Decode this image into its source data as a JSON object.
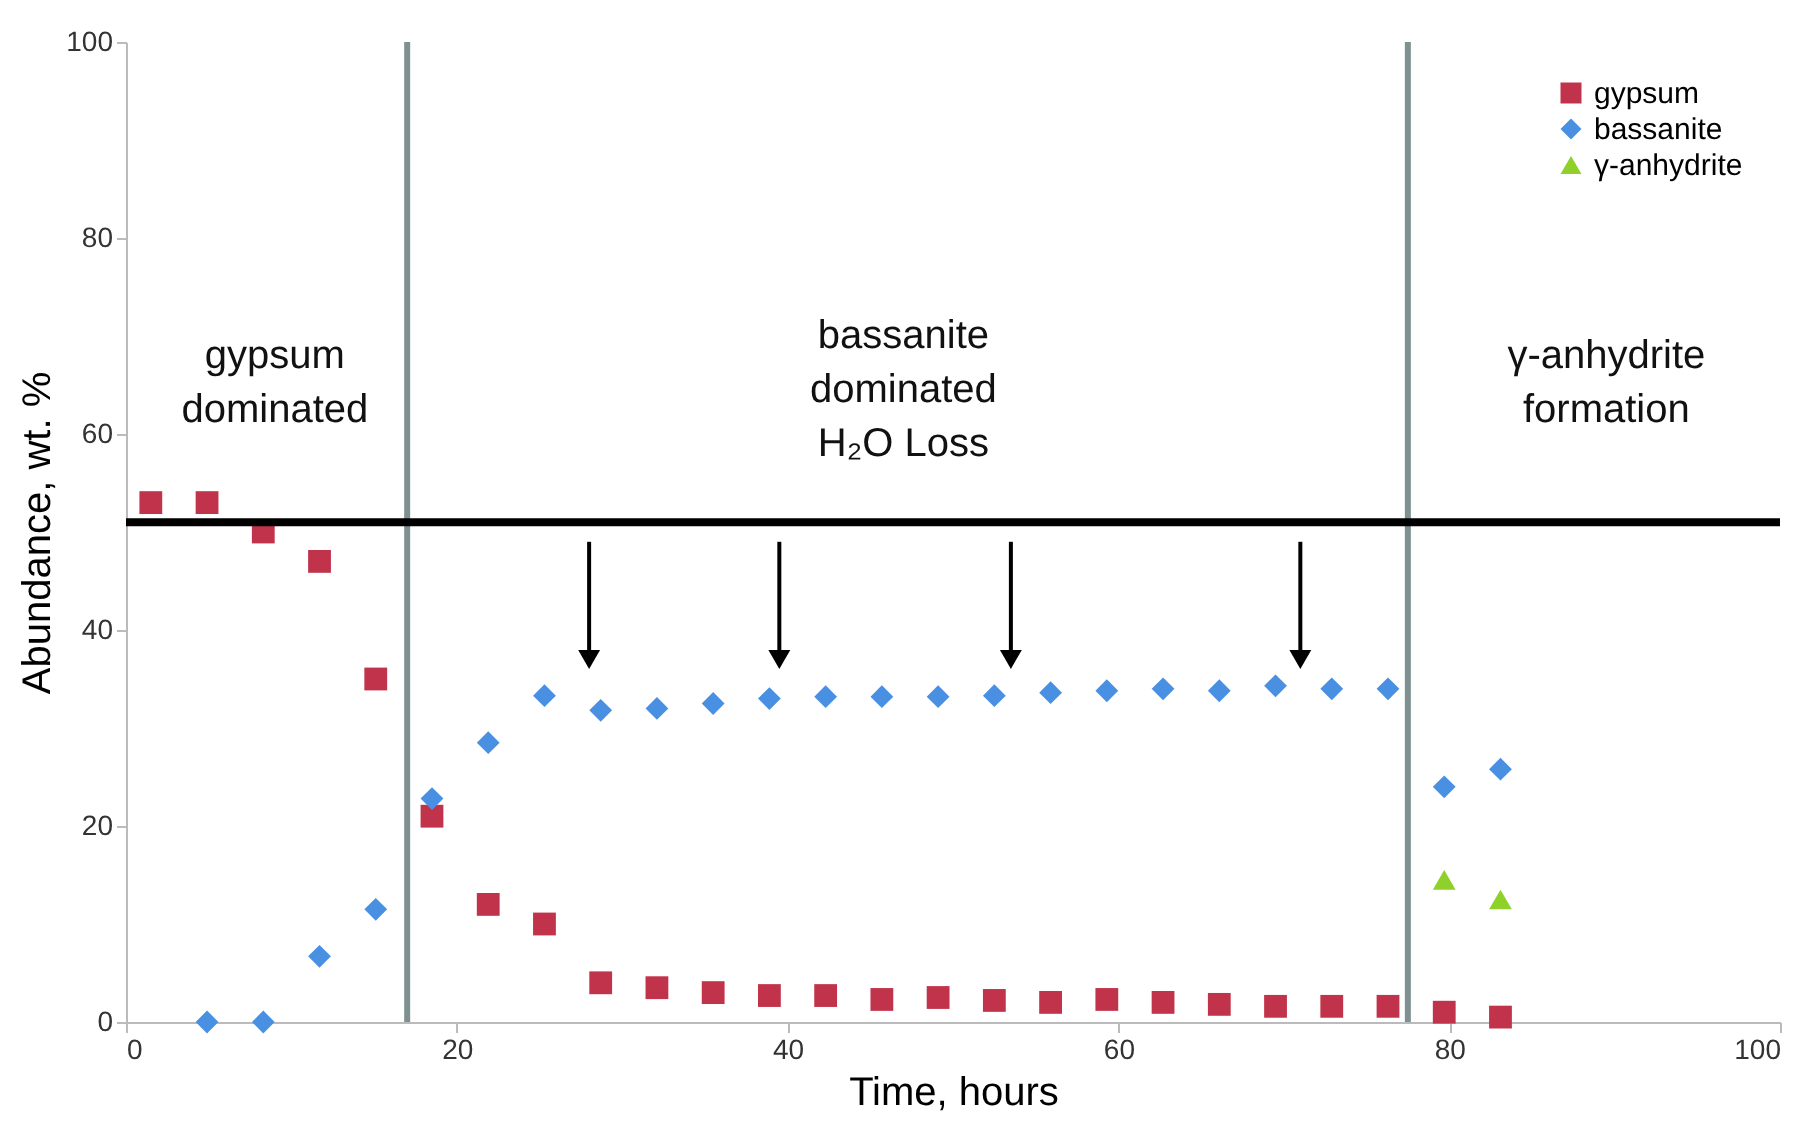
{
  "chart_data": {
    "type": "scatter",
    "xlabel": "Time, hours",
    "ylabel": "Abundance, wt. %",
    "xlim": [
      0,
      100
    ],
    "ylim": [
      0,
      100
    ],
    "xticks": [
      0,
      20,
      40,
      60,
      80,
      100
    ],
    "yticks": [
      0,
      20,
      40,
      60,
      80,
      100
    ],
    "grid": false,
    "legend": "top right",
    "series": [
      {
        "name": "gypsum",
        "color": "#c0334a",
        "marker": "square",
        "x": [
          1.5,
          4.9,
          8.3,
          11.7,
          15.1,
          18.5,
          21.9,
          25.3,
          28.7,
          32.1,
          35.5,
          38.9,
          42.3,
          45.7,
          49.1,
          52.5,
          55.9,
          59.3,
          62.7,
          66.1,
          69.5,
          72.9,
          76.3,
          79.7,
          83.1
        ],
        "values": [
          53,
          53,
          50,
          47,
          35,
          21,
          12,
          10,
          4,
          3.5,
          3,
          2.7,
          2.7,
          2.3,
          2.5,
          2.2,
          2,
          2.3,
          2,
          1.8,
          1.6,
          1.6,
          1.6,
          1,
          0.5
        ]
      },
      {
        "name": "bassanite",
        "color": "#4a90e2",
        "marker": "diamond",
        "x": [
          4.9,
          8.3,
          11.7,
          15.1,
          18.5,
          21.9,
          25.3,
          28.7,
          32.1,
          35.5,
          38.9,
          42.3,
          45.7,
          49.1,
          52.5,
          55.9,
          59.3,
          62.7,
          66.1,
          69.5,
          72.9,
          76.3,
          79.7,
          83.1
        ],
        "values": [
          0,
          0,
          6.7,
          11.5,
          22.8,
          28.5,
          33.3,
          31.8,
          32,
          32.5,
          33,
          33.2,
          33.2,
          33.2,
          33.3,
          33.6,
          33.8,
          34,
          33.8,
          34.3,
          34,
          34,
          24,
          25.8
        ]
      },
      {
        "name": "γ-anhydrite",
        "color": "#8fd12a",
        "marker": "triangle",
        "x": [
          79.7,
          83.1
        ],
        "values": [
          14.5,
          12.5
        ]
      }
    ],
    "ref_lines": [
      {
        "axis": "x",
        "value": 17,
        "color": "#7f9090"
      },
      {
        "axis": "x",
        "value": 77.5,
        "color": "#7f9090"
      },
      {
        "axis": "y",
        "value": 51,
        "color": "#000000"
      }
    ],
    "annotations": [
      "gypsum\ndominated",
      "bassanite\ndominated\nH₂O Loss",
      "γ-anhydrite\nformation"
    ]
  }
}
